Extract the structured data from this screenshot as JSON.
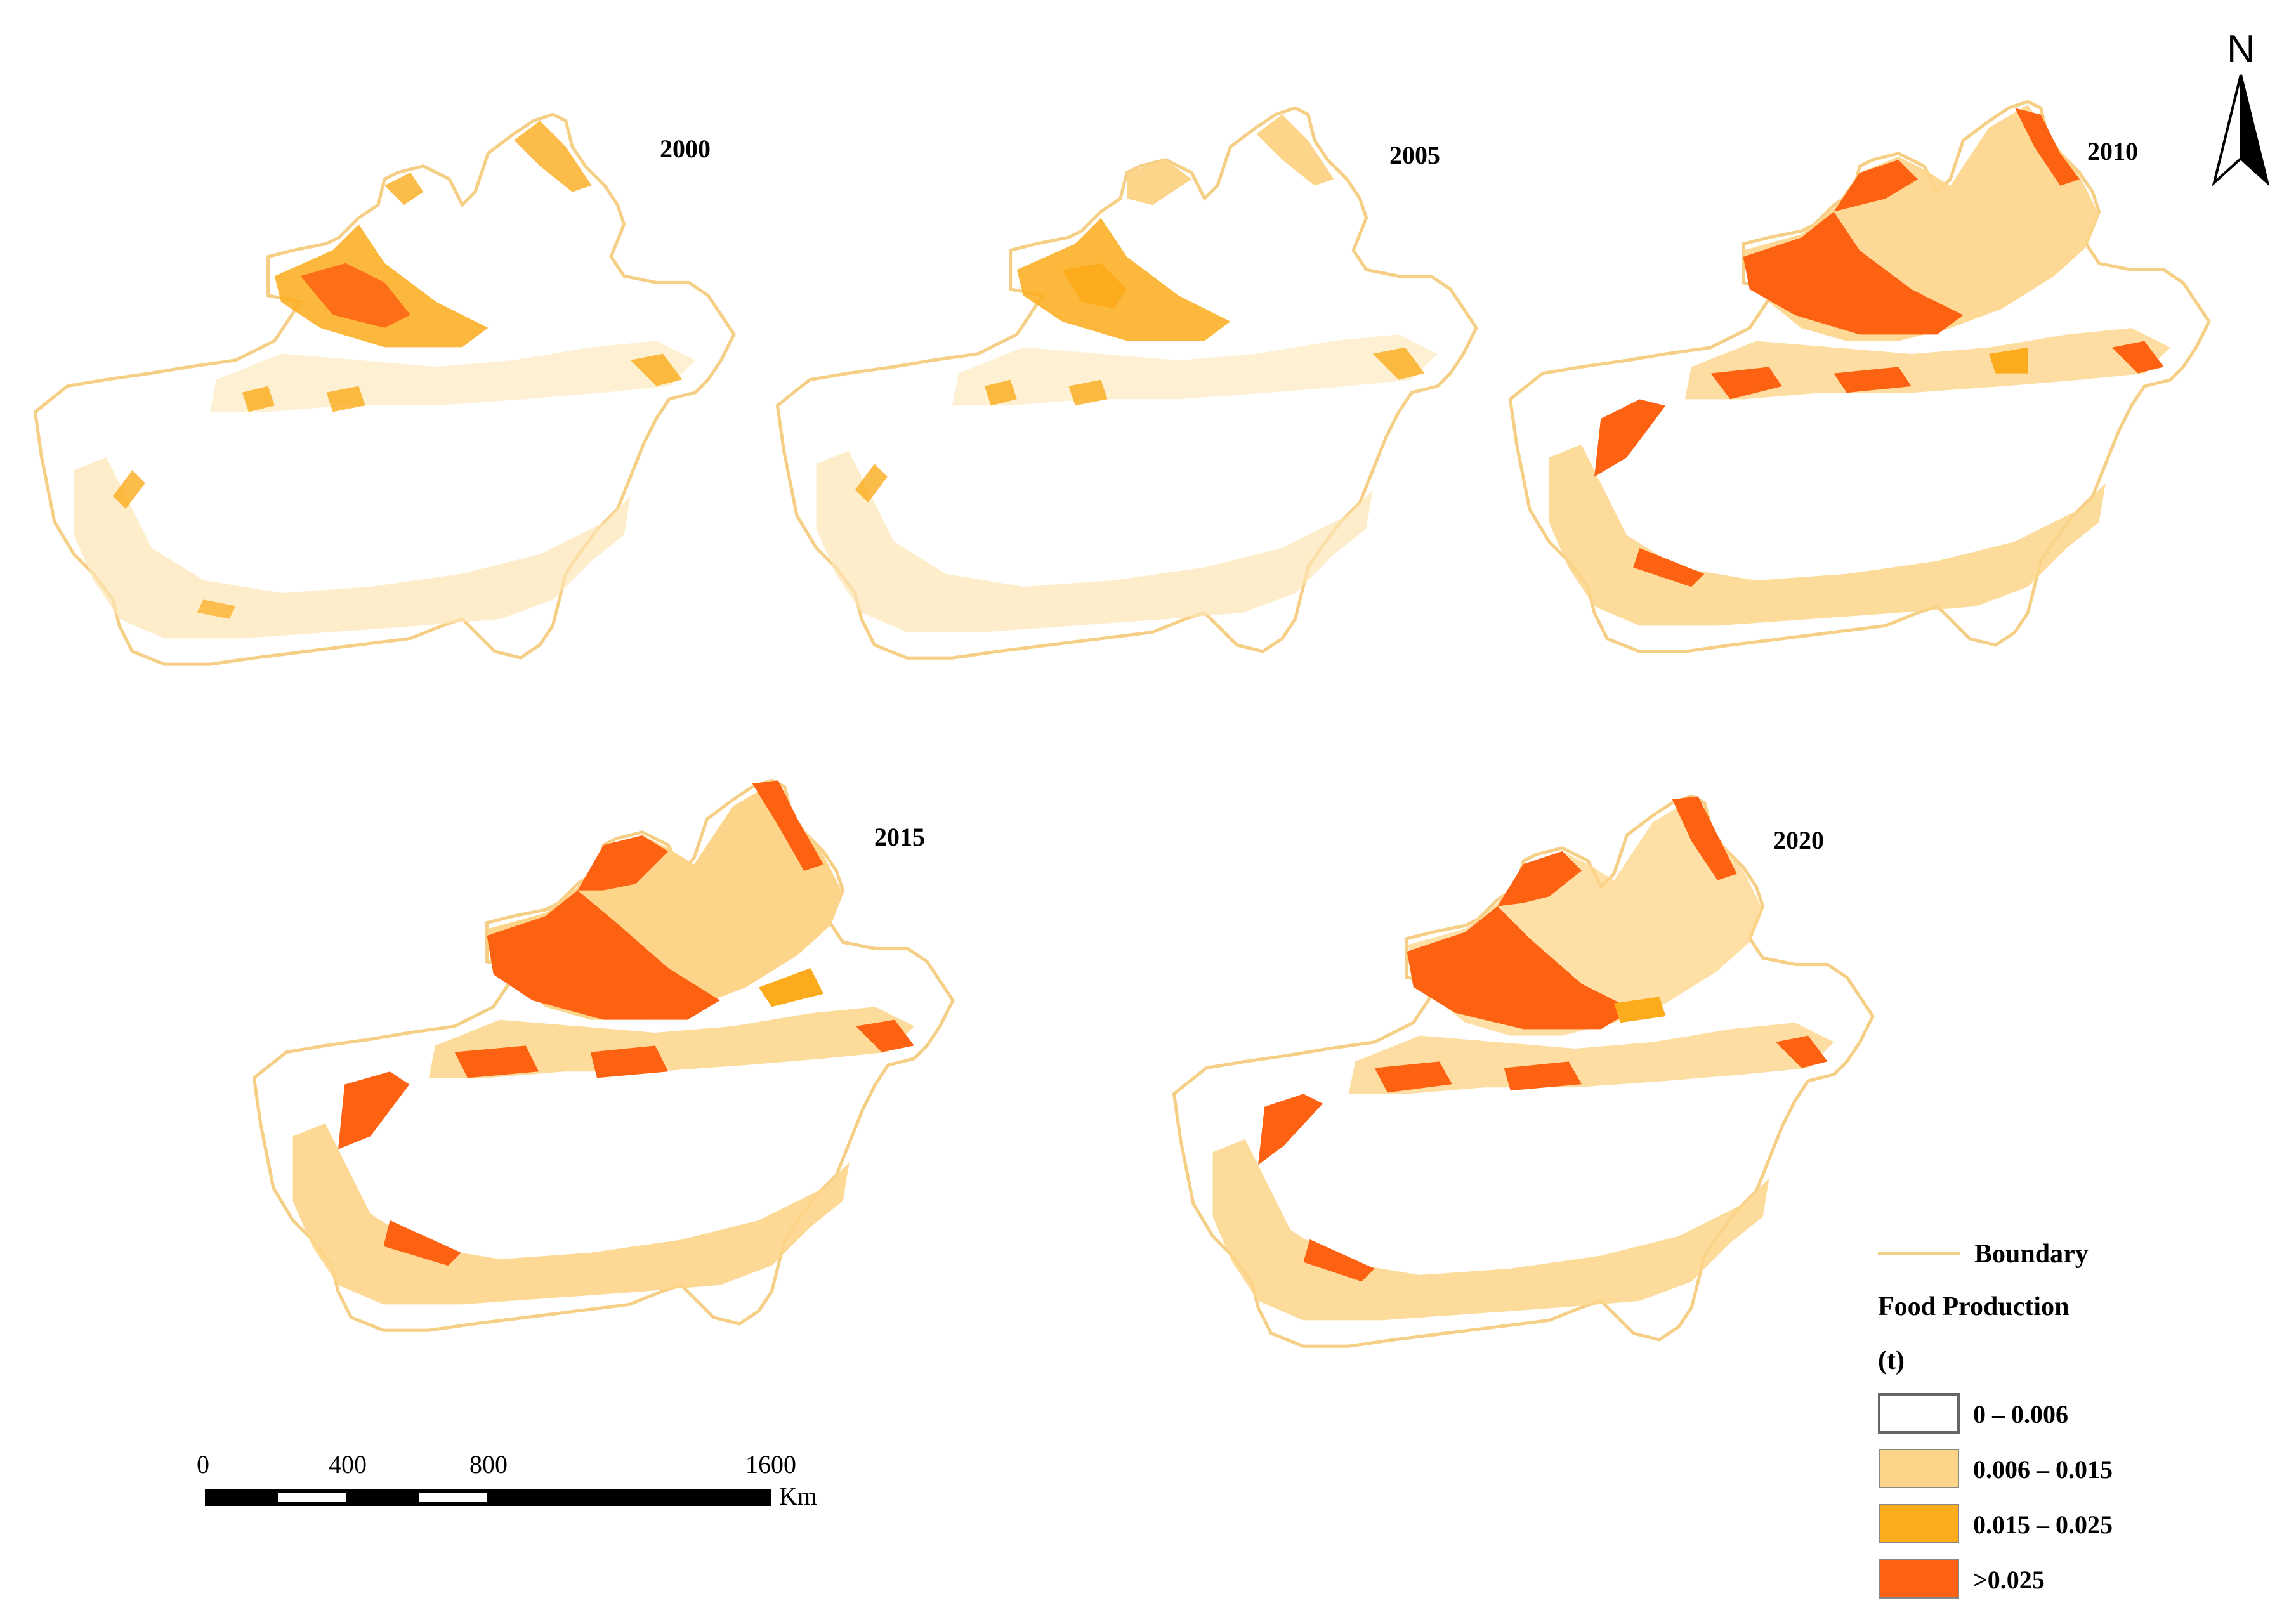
{
  "maps": [
    {
      "year": "2000"
    },
    {
      "year": "2005"
    },
    {
      "year": "2010"
    },
    {
      "year": "2015"
    },
    {
      "year": "2020"
    }
  ],
  "north_arrow": {
    "label": "N"
  },
  "legend": {
    "boundary_label": "Boundary",
    "title_line1": "Food Production",
    "title_line2": "(t)",
    "classes": [
      {
        "label": "0 – 0.006",
        "color": "#ffffff"
      },
      {
        "label": "0.006 – 0.015",
        "color": "#fdd58a"
      },
      {
        "label": "0.015 – 0.025",
        "color": "#fbab1b"
      },
      {
        "label": ">0.025",
        "color": "#fc6212"
      }
    ],
    "boundary_color": "#f6cf86"
  },
  "scale_bar": {
    "ticks": [
      "0",
      "400",
      "800",
      "1600"
    ],
    "unit": "Km"
  }
}
